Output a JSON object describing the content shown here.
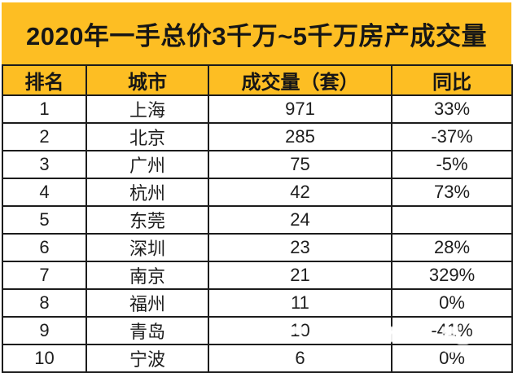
{
  "table": {
    "title": "2020年一手总价3千万~5千万房产成交量",
    "columns": [
      "排名",
      "城市",
      "成交量（套）",
      "同比"
    ],
    "rows": [
      [
        "1",
        "上海",
        "971",
        "33%"
      ],
      [
        "2",
        "北京",
        "285",
        "-37%"
      ],
      [
        "3",
        "广州",
        "75",
        "-5%"
      ],
      [
        "4",
        "杭州",
        "42",
        "73%"
      ],
      [
        "5",
        "东莞",
        "24",
        ""
      ],
      [
        "6",
        "深圳",
        "23",
        "28%"
      ],
      [
        "7",
        "南京",
        "21",
        "329%"
      ],
      [
        "8",
        "福州",
        "11",
        "0%"
      ],
      [
        "9",
        "青岛",
        "10",
        "-41%"
      ],
      [
        "10",
        "宁波",
        "6",
        "0%"
      ]
    ]
  },
  "chart_data": {
    "type": "table",
    "title": "2020年一手总价3千万~5千万房产成交量",
    "categories": [
      "上海",
      "北京",
      "广州",
      "杭州",
      "东莞",
      "深圳",
      "南京",
      "福州",
      "青岛",
      "宁波"
    ],
    "series": [
      {
        "name": "成交量（套）",
        "values": [
          971,
          285,
          75,
          42,
          24,
          23,
          21,
          11,
          10,
          6
        ]
      },
      {
        "name": "同比",
        "values": [
          "33%",
          "-37%",
          "-5%",
          "73%",
          "",
          "28%",
          "329%",
          "0%",
          "-41%",
          "0%"
        ]
      }
    ]
  },
  "colors": {
    "accent_yellow": "#FDBE23",
    "border_black": "#1C1C1C",
    "text_black": "#161616"
  }
}
